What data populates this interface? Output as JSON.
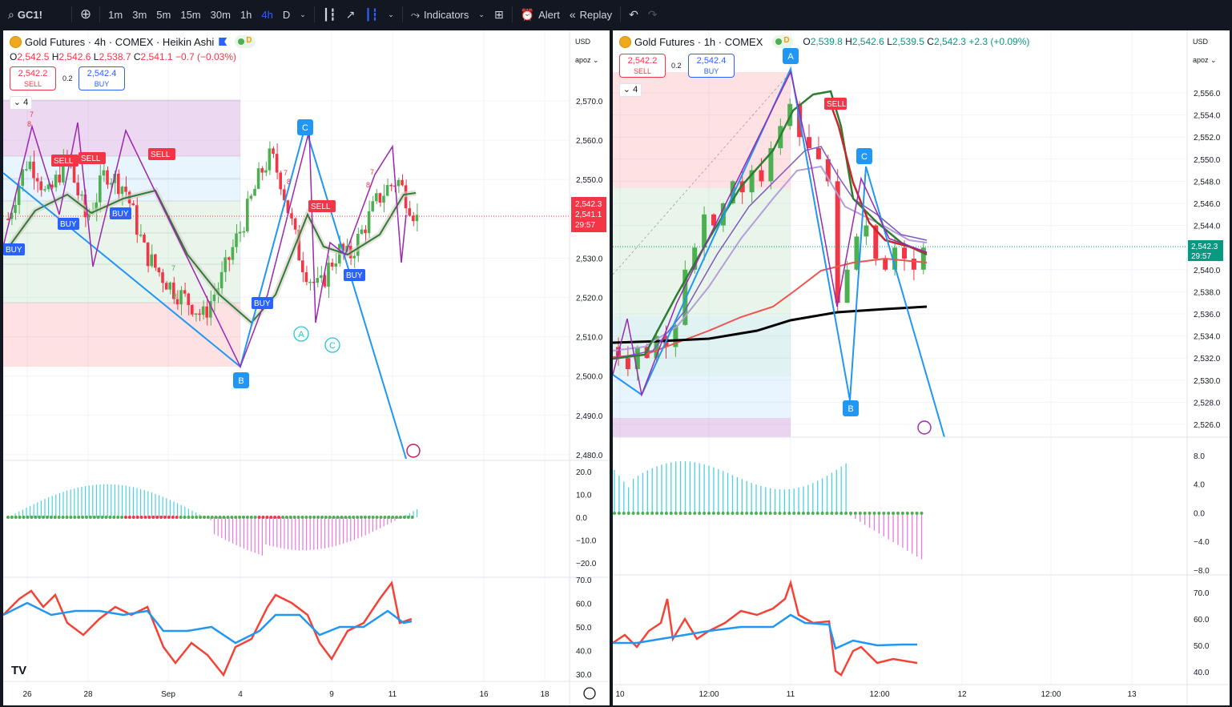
{
  "toolbar": {
    "symbol": "GC1!",
    "intervals": [
      "1m",
      "3m",
      "5m",
      "15m",
      "30m",
      "1h",
      "4h",
      "D"
    ],
    "active_interval": "4h",
    "indicators_label": "Indicators",
    "alert_label": "Alert",
    "replay_label": "Replay"
  },
  "left_chart": {
    "title": "Gold Futures · 4h · COMEX · Heikin Ashi",
    "d_badge": "D",
    "ohlc": {
      "o_label": "O",
      "o": "2,542.5",
      "h_label": "H",
      "h": "2,542.6",
      "l_label": "L",
      "l": "2,538.7",
      "c_label": "C",
      "c": "2,541.1",
      "chg": "−0.7 (−0.03%)"
    },
    "sell": {
      "price": "2,542.2",
      "label": "SELL"
    },
    "buy": {
      "price": "2,542.4",
      "label": "BUY"
    },
    "spread": "0.2",
    "collapse_count": "4",
    "currency": "USD",
    "scale_mode": "apoz",
    "price_ticks": [
      "2,570.0",
      "2,560.0",
      "2,550.0",
      "2,540.0",
      "2,530.0",
      "2,520.0",
      "2,510.0",
      "2,500.0",
      "2,490.0",
      "2,480.0"
    ],
    "last_price": "2,542.3",
    "current_price": "2,541.1",
    "countdown": "29:57",
    "osc_ticks": [
      "20.0",
      "10.0",
      "0.0",
      "−10.0",
      "−20.0"
    ],
    "rsi_ticks": [
      "70.0",
      "60.0",
      "50.0",
      "40.0",
      "30.0"
    ],
    "time_ticks": [
      "26",
      "28",
      "Sep",
      "4",
      "9",
      "11",
      "16",
      "18"
    ],
    "wave_labels": [
      "B",
      "C"
    ],
    "circle_labels": [
      "A",
      "C"
    ],
    "signals": [
      "SELL",
      "SELL",
      "SELL",
      "BUY",
      "BUY",
      "BUY",
      "BUY",
      "SELL",
      "BUY",
      "BUY"
    ],
    "counts": [
      "7",
      "8",
      "7",
      "8",
      "7",
      "8",
      "7",
      "8"
    ],
    "logo": "TV"
  },
  "right_chart": {
    "title": "Gold Futures · 1h · COMEX",
    "d_badge": "D",
    "ohlc": {
      "o_label": "O",
      "o": "2,539.8",
      "h_label": "H",
      "h": "2,542.6",
      "l_label": "L",
      "l": "2,539.5",
      "c_label": "C",
      "c": "2,542.3",
      "chg": "+2.3 (+0.09%)"
    },
    "sell": {
      "price": "2,542.2",
      "label": "SELL"
    },
    "buy": {
      "price": "2,542.4",
      "label": "BUY"
    },
    "spread": "0.2",
    "collapse_count": "4",
    "currency": "USD",
    "scale_mode": "apoz",
    "price_ticks": [
      "2,556.0",
      "2,554.0",
      "2,552.0",
      "2,550.0",
      "2,548.0",
      "2,546.0",
      "2,544.0",
      "2,542.0",
      "2,540.0",
      "2,538.0",
      "2,536.0",
      "2,534.0",
      "2,532.0",
      "2,530.0",
      "2,528.0",
      "2,526.0"
    ],
    "last_price": "2,542.3",
    "countdown": "29:57",
    "osc_ticks": [
      "8.0",
      "4.0",
      "0.0",
      "−4.0",
      "−8.0"
    ],
    "rsi_ticks": [
      "70.0",
      "60.0",
      "50.0",
      "40.0"
    ],
    "time_ticks": [
      "10",
      "12:00",
      "11",
      "12:00",
      "12",
      "12:00",
      "13"
    ],
    "wave_labels": [
      "A",
      "B",
      "C"
    ],
    "signals": [
      "SELL"
    ]
  },
  "colors": {
    "bg": "#131722",
    "bull": "#4caf50",
    "bear": "#f23645",
    "blue": "#2196f3",
    "purple": "#9c27b0",
    "accent": "#2962ff"
  }
}
